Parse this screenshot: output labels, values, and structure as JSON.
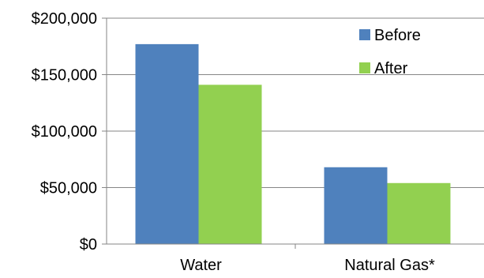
{
  "chart_data": {
    "type": "bar",
    "categories": [
      "Water",
      "Natural Gas*"
    ],
    "series": [
      {
        "name": "Before",
        "values": [
          177000,
          68000
        ],
        "color": "#4f81bd"
      },
      {
        "name": "After",
        "values": [
          141000,
          54000
        ],
        "color": "#92d050"
      }
    ],
    "ylim": [
      0,
      200000
    ],
    "yticks": [
      0,
      50000,
      100000,
      150000,
      200000
    ],
    "ytick_labels": [
      "$0",
      "$50,000",
      "$100,000",
      "$150,000",
      "$200,000"
    ],
    "title": "",
    "xlabel": "",
    "ylabel": "",
    "grid": "horizontal",
    "legend_position": "top-right",
    "axis_color": "#868686",
    "grid_color": "#868686"
  }
}
